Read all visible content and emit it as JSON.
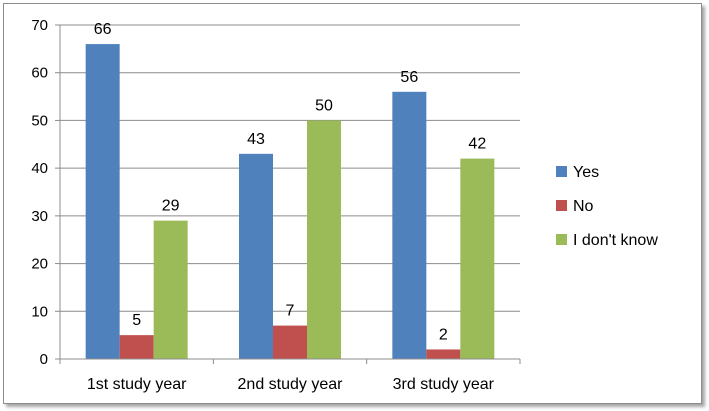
{
  "chart_data": {
    "type": "bar",
    "categories": [
      "1st study year",
      "2nd study year",
      "3rd study year"
    ],
    "series": [
      {
        "name": "Yes",
        "values": [
          66,
          43,
          56
        ],
        "color": "#4f81bd"
      },
      {
        "name": "No",
        "values": [
          5,
          7,
          2
        ],
        "color": "#c0504d"
      },
      {
        "name": "I don't know",
        "values": [
          29,
          50,
          42
        ],
        "color": "#9bbb59"
      }
    ],
    "ylim": [
      0,
      70
    ],
    "yticks": [
      0,
      10,
      20,
      30,
      40,
      50,
      60,
      70
    ],
    "grid": true,
    "legend_position": "right"
  }
}
